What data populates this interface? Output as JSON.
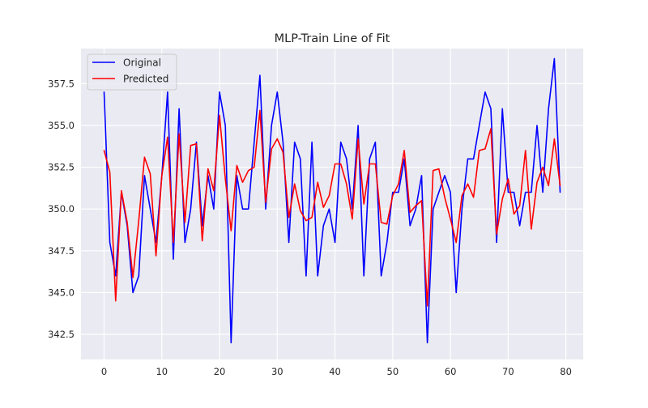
{
  "chart_data": {
    "type": "line",
    "title": "MLP-Train Line of Fit",
    "xlabel": "",
    "ylabel": "",
    "xlim": [
      -4,
      83
    ],
    "ylim": [
      341.0,
      359.6
    ],
    "xticks": [
      0,
      10,
      20,
      30,
      40,
      50,
      60,
      70,
      80
    ],
    "yticks": [
      342.5,
      345.0,
      347.5,
      350.0,
      352.5,
      355.0,
      357.5
    ],
    "ytick_labels": [
      "342.5",
      "345.0",
      "347.5",
      "350.0",
      "352.5",
      "355.0",
      "357.5"
    ],
    "grid": true,
    "background": "#eaeaf2",
    "legend": {
      "placement": "top-left",
      "entries": [
        "Original",
        "Predicted"
      ]
    },
    "series": [
      {
        "name": "Original",
        "color": "#0000ff",
        "x": [
          0,
          1,
          2,
          3,
          4,
          5,
          6,
          7,
          8,
          9,
          10,
          11,
          12,
          13,
          14,
          15,
          16,
          17,
          18,
          19,
          20,
          21,
          22,
          23,
          24,
          25,
          26,
          27,
          28,
          29,
          30,
          31,
          32,
          33,
          34,
          35,
          36,
          37,
          38,
          39,
          40,
          41,
          42,
          43,
          44,
          45,
          46,
          47,
          48,
          49,
          50,
          51,
          52,
          53,
          54,
          55,
          56,
          57,
          58,
          59,
          60,
          61,
          62,
          63,
          64,
          65,
          66,
          67,
          68,
          69,
          70,
          71,
          72,
          73,
          74,
          75,
          76,
          77,
          78,
          79
        ],
        "values": [
          357,
          348,
          346,
          351,
          349,
          345,
          346,
          352,
          350,
          348,
          352,
          357,
          347,
          356,
          348,
          350,
          354,
          349,
          352,
          350,
          357,
          355,
          342,
          352,
          350,
          350,
          354,
          358,
          350,
          355,
          357,
          354,
          348,
          354,
          353,
          346,
          354,
          346,
          349,
          350,
          348,
          354,
          353,
          350,
          355,
          346,
          353,
          354,
          346,
          348,
          351,
          351,
          353,
          349,
          350,
          352,
          342,
          350,
          351,
          352,
          351,
          345,
          350,
          353,
          353,
          355,
          357,
          356,
          348,
          356,
          351,
          351,
          349,
          351,
          351,
          355,
          351,
          356,
          359,
          351
        ]
      },
      {
        "name": "Predicted",
        "color": "#ff0000",
        "x": [
          0,
          1,
          2,
          3,
          4,
          5,
          6,
          7,
          8,
          9,
          10,
          11,
          12,
          13,
          14,
          15,
          16,
          17,
          18,
          19,
          20,
          21,
          22,
          23,
          24,
          25,
          26,
          27,
          28,
          29,
          30,
          31,
          32,
          33,
          34,
          35,
          36,
          37,
          38,
          39,
          40,
          41,
          42,
          43,
          44,
          45,
          46,
          47,
          48,
          49,
          50,
          51,
          52,
          53,
          54,
          55,
          56,
          57,
          58,
          59,
          60,
          61,
          62,
          63,
          64,
          65,
          66,
          67,
          68,
          69,
          70,
          71,
          72,
          73,
          74,
          75,
          76,
          77,
          78,
          79
        ],
        "values": [
          353.5,
          352.2,
          344.5,
          351.1,
          349.2,
          345.9,
          349.3,
          353.1,
          352.1,
          347.2,
          352.0,
          354.3,
          348.0,
          354.5,
          349.2,
          353.8,
          353.9,
          348.1,
          352.4,
          351.1,
          355.6,
          351.8,
          348.7,
          352.6,
          351.6,
          352.3,
          352.5,
          355.9,
          350.4,
          353.6,
          354.2,
          353.4,
          349.5,
          351.5,
          349.9,
          349.3,
          349.5,
          351.6,
          350.1,
          350.8,
          352.7,
          352.7,
          351.5,
          349.4,
          354.2,
          350.3,
          352.7,
          352.7,
          349.2,
          349.1,
          350.8,
          351.5,
          353.5,
          349.8,
          350.2,
          350.5,
          344.2,
          352.3,
          352.4,
          350.7,
          349.4,
          348.0,
          350.8,
          351.5,
          350.7,
          353.5,
          353.6,
          354.8,
          348.5,
          350.6,
          351.8,
          349.7,
          350.2,
          353.5,
          348.8,
          351.6,
          352.5,
          351.4,
          354.2,
          351.4
        ]
      }
    ]
  }
}
